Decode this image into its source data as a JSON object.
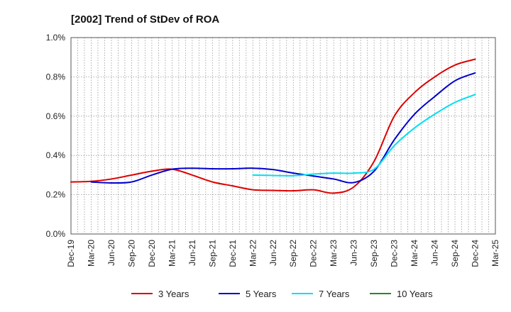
{
  "chart_data": {
    "type": "line",
    "title": "[2002]  Trend of StDev of ROA",
    "xlabel": "",
    "ylabel": "",
    "x_categories": [
      "Dec-19",
      "Mar-20",
      "Jun-20",
      "Sep-20",
      "Dec-20",
      "Mar-21",
      "Jun-21",
      "Sep-21",
      "Dec-21",
      "Mar-22",
      "Jun-22",
      "Sep-22",
      "Dec-22",
      "Mar-23",
      "Jun-23",
      "Sep-23",
      "Dec-23",
      "Mar-24",
      "Jun-24",
      "Sep-24",
      "Dec-24",
      "Mar-25"
    ],
    "y_ticks": [
      "0.0%",
      "0.2%",
      "0.4%",
      "0.6%",
      "0.8%",
      "1.0%"
    ],
    "ylim": [
      0,
      1.0
    ],
    "grid": true,
    "legend_position": "bottom",
    "series": [
      {
        "name": "3 Years",
        "color": "#dd0000",
        "values": [
          0.265,
          0.268,
          0.28,
          0.3,
          0.32,
          0.33,
          0.3,
          0.265,
          0.245,
          0.225,
          0.222,
          0.22,
          0.225,
          0.208,
          0.24,
          0.37,
          0.6,
          0.72,
          0.8,
          0.86,
          0.89,
          null
        ]
      },
      {
        "name": "5 Years",
        "color": "#0000cc",
        "values": [
          null,
          0.265,
          0.26,
          0.265,
          0.3,
          0.33,
          0.335,
          0.332,
          0.332,
          0.335,
          0.328,
          0.31,
          0.295,
          0.28,
          0.262,
          0.32,
          0.48,
          0.61,
          0.7,
          0.78,
          0.82,
          null
        ]
      },
      {
        "name": "7 Years",
        "color": "#00e0f0",
        "values": [
          null,
          null,
          null,
          null,
          null,
          null,
          null,
          null,
          null,
          0.3,
          0.298,
          0.297,
          0.305,
          0.31,
          0.31,
          0.33,
          0.45,
          0.54,
          0.61,
          0.67,
          0.71,
          null
        ]
      },
      {
        "name": "10 Years",
        "color": "#228b22",
        "values": [
          null,
          null,
          null,
          null,
          null,
          null,
          null,
          null,
          null,
          null,
          null,
          null,
          null,
          null,
          null,
          null,
          null,
          null,
          null,
          null,
          null,
          null
        ]
      }
    ]
  }
}
